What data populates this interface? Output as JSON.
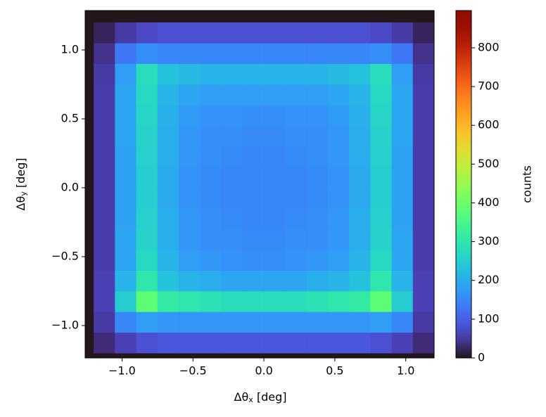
{
  "chart_data": {
    "type": "heatmap",
    "colormap": "turbo",
    "xlabel": {
      "symbol": "Δθ",
      "subscript": "x",
      "unit": "[deg]"
    },
    "ylabel": {
      "symbol": "Δθ",
      "subscript": "y",
      "unit": "[deg]"
    },
    "colorbar_label": "counts",
    "xlim": [
      -1.26,
      1.2
    ],
    "ylim": [
      -1.235,
      1.286
    ],
    "clim": [
      0,
      896
    ],
    "xticks": [
      {
        "value": -1.0,
        "label": "−1.0"
      },
      {
        "value": -0.5,
        "label": "−0.5"
      },
      {
        "value": 0.0,
        "label": "0.0"
      },
      0.5,
      {
        "value": 1.0,
        "label": "1.0"
      }
    ],
    "yticks": [
      {
        "value": -1.0,
        "label": "−1.0"
      },
      {
        "value": -0.5,
        "label": "−0.5"
      },
      {
        "value": 0.0,
        "label": "0.0"
      },
      0.5,
      {
        "value": 1.0,
        "label": "1.0"
      }
    ],
    "cticks": [
      0,
      100,
      200,
      300,
      400,
      500,
      600,
      700,
      800
    ],
    "xbins": [
      -1.2,
      -1.05,
      -0.9,
      -0.75,
      -0.6,
      -0.45,
      -0.3,
      -0.15,
      0.0,
      0.15,
      0.3,
      0.45,
      0.6,
      0.75,
      0.9,
      1.05,
      1.2
    ],
    "ybins": [
      -1.2,
      -1.05,
      -0.9,
      -0.75,
      -0.6,
      -0.45,
      -0.3,
      -0.15,
      0.0,
      0.15,
      0.3,
      0.45,
      0.6,
      0.75,
      0.9,
      1.05,
      1.2
    ],
    "counts": [
      [
        30,
        60,
        80,
        90,
        90,
        90,
        90,
        90,
        90,
        90,
        90,
        90,
        90,
        80,
        60,
        30
      ],
      [
        50,
        150,
        180,
        170,
        170,
        170,
        170,
        170,
        170,
        170,
        170,
        170,
        170,
        180,
        150,
        50
      ],
      [
        60,
        250,
        380,
        310,
        300,
        290,
        280,
        280,
        280,
        280,
        290,
        300,
        310,
        380,
        250,
        60
      ],
      [
        60,
        210,
        300,
        230,
        210,
        200,
        190,
        190,
        190,
        190,
        200,
        210,
        230,
        300,
        210,
        60
      ],
      [
        55,
        190,
        270,
        210,
        180,
        170,
        165,
        160,
        160,
        165,
        170,
        180,
        210,
        270,
        190,
        55
      ],
      [
        55,
        190,
        260,
        200,
        170,
        160,
        160,
        155,
        155,
        160,
        160,
        170,
        200,
        260,
        190,
        55
      ],
      [
        55,
        185,
        255,
        200,
        170,
        160,
        155,
        150,
        150,
        155,
        160,
        170,
        200,
        255,
        185,
        55
      ],
      [
        55,
        185,
        250,
        195,
        165,
        155,
        150,
        150,
        150,
        150,
        155,
        165,
        195,
        250,
        185,
        55
      ],
      [
        55,
        185,
        250,
        195,
        165,
        155,
        150,
        150,
        150,
        150,
        155,
        165,
        195,
        250,
        185,
        55
      ],
      [
        55,
        185,
        255,
        200,
        170,
        160,
        155,
        150,
        150,
        155,
        160,
        170,
        200,
        255,
        185,
        55
      ],
      [
        55,
        190,
        260,
        200,
        170,
        160,
        160,
        155,
        155,
        160,
        160,
        170,
        200,
        260,
        190,
        55
      ],
      [
        55,
        190,
        265,
        205,
        175,
        165,
        165,
        160,
        160,
        165,
        165,
        175,
        205,
        265,
        190,
        55
      ],
      [
        55,
        190,
        270,
        210,
        190,
        180,
        180,
        180,
        180,
        180,
        180,
        190,
        210,
        270,
        190,
        55
      ],
      [
        50,
        180,
        280,
        230,
        220,
        210,
        210,
        210,
        210,
        210,
        210,
        220,
        230,
        280,
        180,
        50
      ],
      [
        40,
        130,
        160,
        150,
        150,
        150,
        150,
        150,
        150,
        150,
        150,
        150,
        150,
        160,
        130,
        40
      ],
      [
        20,
        50,
        70,
        80,
        80,
        80,
        80,
        80,
        80,
        80,
        80,
        80,
        80,
        70,
        50,
        20
      ]
    ]
  }
}
